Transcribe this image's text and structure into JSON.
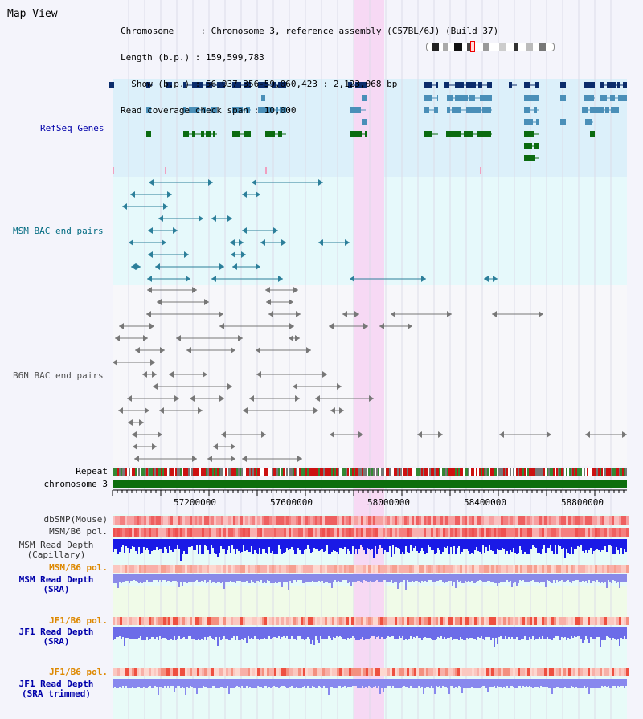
{
  "title": "Map View",
  "info": {
    "line1": "Chromosome     : Chromosome 3, reference assembly (C57BL/6J) (Build 37)",
    "line2": "Length (b.p.) : 159,599,783",
    "line3": "  Show (b.p.) : 56,937,356-59,060,423 : 2,123,068 bp",
    "line4": "Read coverage check span : 10,000"
  },
  "tracks": {
    "refseq": "RefSeq Genes",
    "msm_bac": "MSM BAC end pairs",
    "b6n_bac": "B6N BAC end pairs",
    "repeat": "Repeat",
    "chromosome": "chromosome 3",
    "dbsnp": "dbSNP(Mouse)",
    "msm_b6_pol": "MSM/B6 pol.",
    "msm_depth_cap_1": "MSM Read Depth",
    "msm_depth_cap_2": "(Capillary)",
    "msm_b6_pol2": "MSM/B6 pol.",
    "msm_depth_sra_1": "MSM Read Depth",
    "msm_depth_sra_2": "(SRA)",
    "jf1_b6_pol": "JF1/B6 pol.",
    "jf1_depth_sra_1": "JF1 Read Depth",
    "jf1_depth_sra_2": "(SRA)",
    "jf1_b6_pol2": "JF1/B6 pol.",
    "jf1_depth_trim_1": "JF1 Read Depth",
    "jf1_depth_trim_2": "(SRA trimmed)"
  },
  "axis_ticks": [
    "57200000",
    "57600000",
    "58000000",
    "58400000",
    "58800000"
  ],
  "colors": {
    "refseq_bg": "#dcf0fa",
    "bac_bg": "#e6f9fb",
    "highlight": "#f7d7f3",
    "gene_dark": "#0b2c6b",
    "gene_mid": "#4a8fb8",
    "gene_green": "#0a6b10",
    "msm_bac": "#2c7f9a",
    "b6n_bac": "#777777",
    "chromosome_bar": "#0d6e0d",
    "label_blue": "#0000aa",
    "label_teal": "#006a80",
    "label_orange": "#dd8800"
  }
}
